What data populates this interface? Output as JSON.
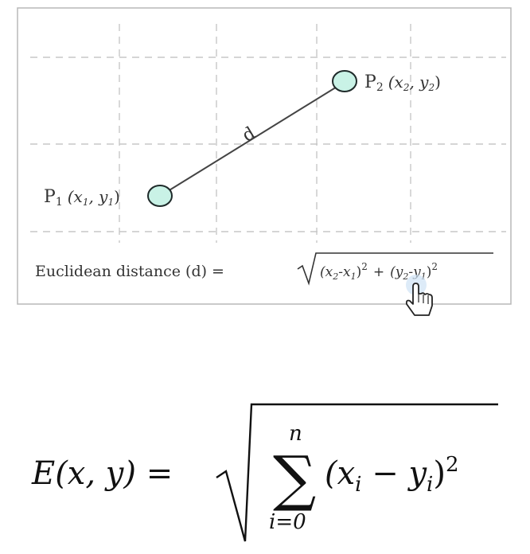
{
  "diagram": {
    "p1": {
      "label": "P",
      "subscript": "1",
      "coords_italic": "(x",
      "coords_sub": "1",
      "coords_mid": ", y",
      "coords_sub2": "1",
      "coords_close": ")"
    },
    "p2": {
      "label": "P",
      "subscript": "2",
      "coords_italic": "(x",
      "coords_sub": "2",
      "coords_mid": ", y",
      "coords_sub2": "2",
      "coords_close": ")"
    },
    "distance_label": "d",
    "caption": {
      "prefix": "Euclidean distance (d) = ",
      "term1_open": "(x",
      "term1_sub_a": "2",
      "term1_minus": "-x",
      "term1_sub_b": "1",
      "term1_close": ")",
      "term1_power": "2",
      "plus": "+",
      "term2_open": "(y",
      "term2_sub_a": "2",
      "term2_minus": "-y",
      "term2_sub_b": "1",
      "term2_close": ")",
      "term2_power": "2"
    },
    "colors": {
      "point_fill": "#c9f2e6",
      "point_stroke": "#1f2a2a",
      "grid": "#c7c7c7",
      "frame": "#b8b8b8",
      "line": "#444444"
    }
  },
  "formula": {
    "lhs": "E(x, y) = ",
    "sum_upper": "n",
    "sum_lower": "i=0",
    "sum_symbol": "∑",
    "body_open": "(x",
    "body_sub_i": "i",
    "body_minus": " − y",
    "body_sub_i2": "i",
    "body_close": ")",
    "body_power": "2"
  },
  "cursor": {
    "icon": "hand-pointer-icon"
  }
}
